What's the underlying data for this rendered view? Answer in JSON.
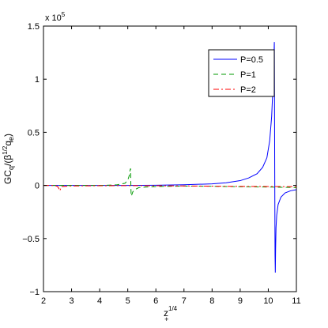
{
  "chart_data": {
    "type": "line",
    "xlabel": "z",
    "xlabel_sub": "+",
    "xlabel_sup": "1/4",
    "ylabel": "GC_q/(β^{1/2} q_e)",
    "ylabel_parts": {
      "base": "GC",
      "sub1": "q",
      "mid": "/(β",
      "sup": "1/2",
      "tail": "q",
      "sub2": "e",
      "close": ")"
    },
    "y_multiplier": {
      "base": "x 10",
      "exp": "5"
    },
    "xlim": [
      2,
      11
    ],
    "ylim": [
      -1,
      1.5
    ],
    "xticks": [
      2,
      3,
      4,
      5,
      6,
      7,
      8,
      9,
      10,
      11
    ],
    "yticks": [
      -1,
      -0.5,
      0,
      0.5,
      1,
      1.5
    ],
    "ytick_labels": [
      "−1",
      "−0.5",
      "0",
      "0.5",
      "1",
      "1.5"
    ],
    "grid": false,
    "legend_position": "top-right",
    "series": [
      {
        "name": "P=0.5",
        "color": "#0000ff",
        "style": "solid",
        "x": [
          2.0,
          3.0,
          4.0,
          5.0,
          6.0,
          7.0,
          8.0,
          8.5,
          9.0,
          9.3,
          9.6,
          9.8,
          9.95,
          10.05,
          10.12,
          10.17,
          10.2,
          10.215,
          10.225,
          10.235,
          10.24,
          10.25,
          10.26,
          10.275,
          10.3,
          10.35,
          10.45,
          10.6,
          10.8,
          11.0
        ],
        "y": [
          0.0,
          0.0,
          0.0,
          0.0,
          0.002,
          0.006,
          0.015,
          0.025,
          0.045,
          0.07,
          0.11,
          0.17,
          0.26,
          0.42,
          0.65,
          0.95,
          1.2,
          1.35,
          0.5,
          -0.3,
          -0.65,
          -0.82,
          -0.6,
          -0.4,
          -0.28,
          -0.18,
          -0.11,
          -0.07,
          -0.05,
          -0.04
        ]
      },
      {
        "name": "P=1",
        "color": "#009900",
        "style": "dashed",
        "x": [
          2.0,
          3.0,
          4.0,
          4.6,
          4.9,
          5.0,
          5.05,
          5.08,
          5.1,
          5.11,
          5.12,
          5.14,
          5.18,
          5.25,
          5.4,
          6.0,
          7.0,
          8.0,
          9.0,
          10.0,
          11.0
        ],
        "y": [
          0.0,
          0.0,
          0.0,
          0.005,
          0.02,
          0.05,
          0.09,
          0.14,
          0.16,
          0.0,
          -0.1,
          -0.09,
          -0.06,
          -0.04,
          -0.02,
          -0.01,
          -0.006,
          -0.008,
          -0.012,
          -0.015,
          -0.02
        ]
      },
      {
        "name": "P=2",
        "color": "#ff0000",
        "style": "dashdot",
        "x": [
          2.0,
          2.4,
          2.5,
          2.55,
          2.58,
          2.65,
          3.0,
          4.0,
          5.0,
          6.0,
          7.0,
          8.0,
          9.0,
          10.0,
          11.0
        ],
        "y": [
          0.0,
          0.0,
          -0.01,
          -0.03,
          -0.05,
          -0.01,
          -0.005,
          -0.003,
          -0.002,
          -0.003,
          -0.005,
          -0.007,
          -0.009,
          -0.01,
          -0.012
        ]
      }
    ]
  }
}
